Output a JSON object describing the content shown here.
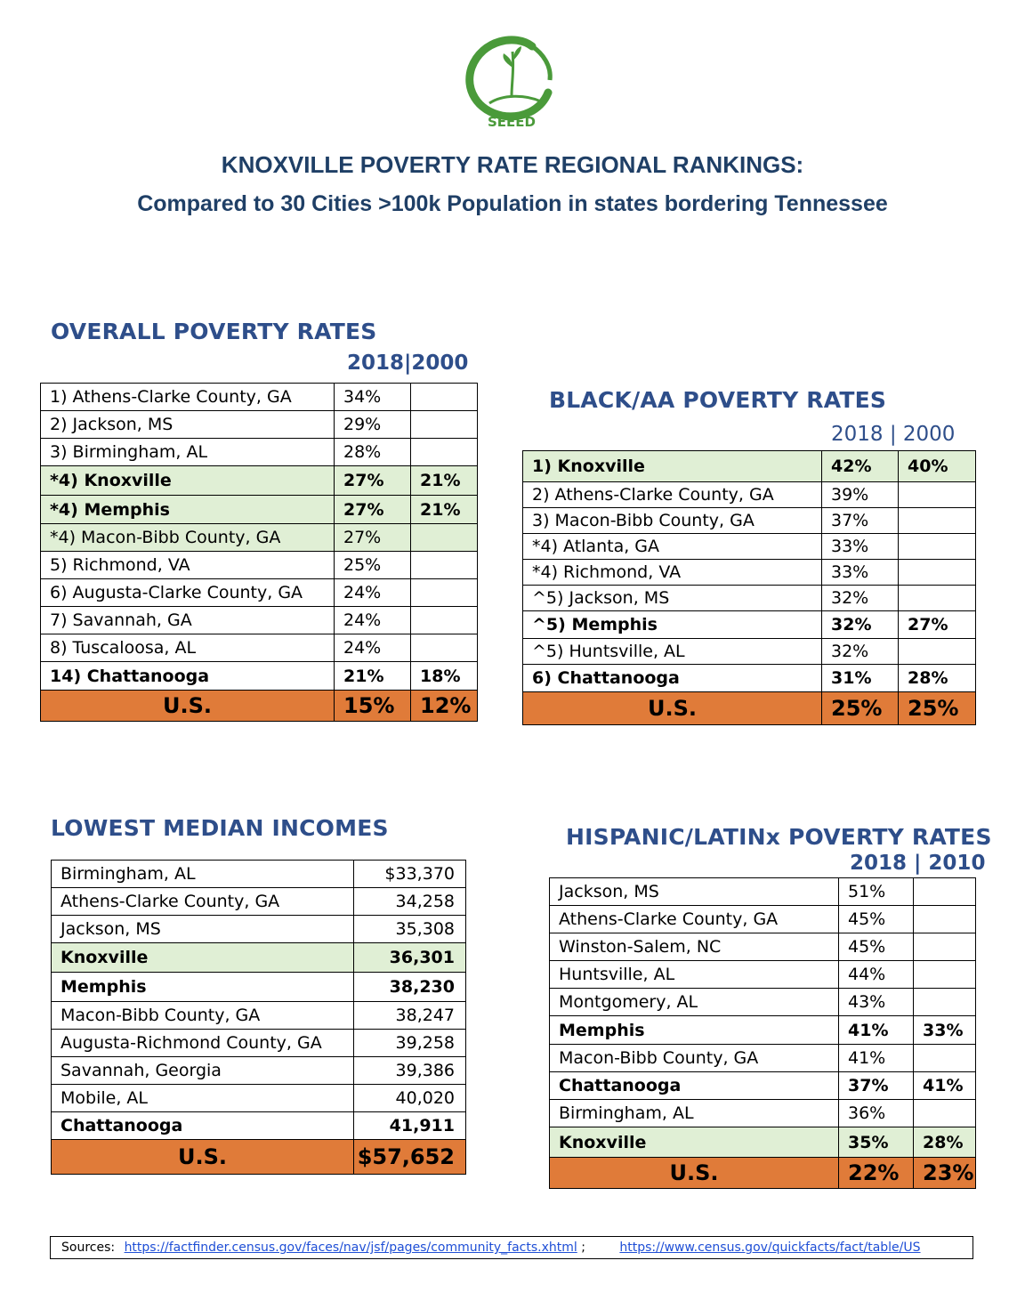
{
  "logo": {
    "text": "SEEED",
    "tagline": ""
  },
  "header": {
    "title": "KNOXVILLE POVERTY RATE REGIONAL RANKINGS:",
    "subtitle": "Compared to 30 Cities >100k Population in states bordering Tennessee"
  },
  "overall": {
    "title": "OVERALL POVERTY RATES",
    "years": "2018|2000",
    "rows": [
      {
        "label": "1) Athens-Clarke County, GA",
        "a": "34%",
        "b": ""
      },
      {
        "label": "2) Jackson, MS",
        "a": "29%",
        "b": ""
      },
      {
        "label": "3) Birmingham, AL",
        "a": "28%",
        "b": ""
      },
      {
        "label": "*4) Knoxville",
        "a": "27%",
        "b": "21%"
      },
      {
        "label": "*4) Memphis",
        "a": "27%",
        "b": "21%"
      },
      {
        "label": "*4) Macon-Bibb County, GA",
        "a": "27%",
        "b": ""
      },
      {
        "label": "5) Richmond, VA",
        "a": "25%",
        "b": ""
      },
      {
        "label": "6) Augusta-Clarke County, GA",
        "a": "24%",
        "b": ""
      },
      {
        "label": "7) Savannah, GA",
        "a": "24%",
        "b": ""
      },
      {
        "label": "8) Tuscaloosa, AL",
        "a": "24%",
        "b": ""
      },
      {
        "label": "14) Chattanooga",
        "a": "21%",
        "b": "18%"
      },
      {
        "label": "U.S.",
        "a": "15%",
        "b": "12%"
      }
    ]
  },
  "black": {
    "title": "BLACK/AA POVERTY RATES",
    "years": "2018 | 2000",
    "rows": [
      {
        "label": "1) Knoxville",
        "a": "42%",
        "b": "40%"
      },
      {
        "label": "2) Athens-Clarke County, GA",
        "a": "39%",
        "b": ""
      },
      {
        "label": "3) Macon-Bibb County, GA",
        "a": "37%",
        "b": ""
      },
      {
        "label": "*4) Atlanta, GA",
        "a": "33%",
        "b": ""
      },
      {
        "label": "*4) Richmond, VA",
        "a": "33%",
        "b": ""
      },
      {
        "label": "^5) Jackson, MS",
        "a": "32%",
        "b": ""
      },
      {
        "label": "^5) Memphis",
        "a": "32%",
        "b": "27%"
      },
      {
        "label": "^5) Huntsville, AL",
        "a": "32%",
        "b": ""
      },
      {
        "label": "6) Chattanooga",
        "a": "31%",
        "b": "28%"
      },
      {
        "label": "U.S.",
        "a": "25%",
        "b": "25%"
      }
    ]
  },
  "income": {
    "title": "LOWEST MEDIAN INCOMES",
    "rows": [
      {
        "label": "Birmingham, AL",
        "a": "$33,370"
      },
      {
        "label": "Athens-Clarke County, GA",
        "a": "34,258"
      },
      {
        "label": "Jackson, MS",
        "a": "35,308"
      },
      {
        "label": "Knoxville",
        "a": "36,301"
      },
      {
        "label": "Memphis",
        "a": "38,230"
      },
      {
        "label": "Macon-Bibb County, GA",
        "a": "38,247"
      },
      {
        "label": "Augusta-Richmond County, GA",
        "a": "39,258"
      },
      {
        "label": "Savannah, Georgia",
        "a": "39,386"
      },
      {
        "label": "Mobile, AL",
        "a": "40,020"
      },
      {
        "label": "Chattanooga",
        "a": "41,911"
      },
      {
        "label": "U.S.",
        "a": "$57,652"
      }
    ]
  },
  "hispanic": {
    "title": "HISPANIC/LATINx POVERTY RATES",
    "years": "2018 | 2010",
    "rows": [
      {
        "label": "Jackson, MS",
        "a": "51%",
        "b": ""
      },
      {
        "label": "Athens-Clarke County, GA",
        "a": "45%",
        "b": ""
      },
      {
        "label": "Winston-Salem, NC",
        "a": "45%",
        "b": ""
      },
      {
        "label": "Huntsville, AL",
        "a": "44%",
        "b": ""
      },
      {
        "label": "Montgomery, AL",
        "a": "43%",
        "b": ""
      },
      {
        "label": "Memphis",
        "a": "41%",
        "b": "33%"
      },
      {
        "label": "Macon-Bibb County, GA",
        "a": "41%",
        "b": ""
      },
      {
        "label": "Chattanooga",
        "a": "37%",
        "b": "41%"
      },
      {
        "label": "Birmingham, AL",
        "a": "36%",
        "b": ""
      },
      {
        "label": "Knoxville",
        "a": "35%",
        "b": "28%"
      },
      {
        "label": "U.S.",
        "a": "22%",
        "b": "23%"
      }
    ]
  },
  "sources": {
    "label": "Sources:",
    "link1": "https://factfinder.census.gov/faces/nav/jsf/pages/community_facts.xhtml",
    "sep": ";",
    "link2": "https://www.census.gov/quickfacts/fact/table/US"
  },
  "colors": {
    "accent_green": "#e0efd5",
    "us_orange": "#e07b39",
    "title_blue": "#1f3f66",
    "section_blue": "#2e4e8a",
    "logo_green": "#4a9a3a"
  }
}
